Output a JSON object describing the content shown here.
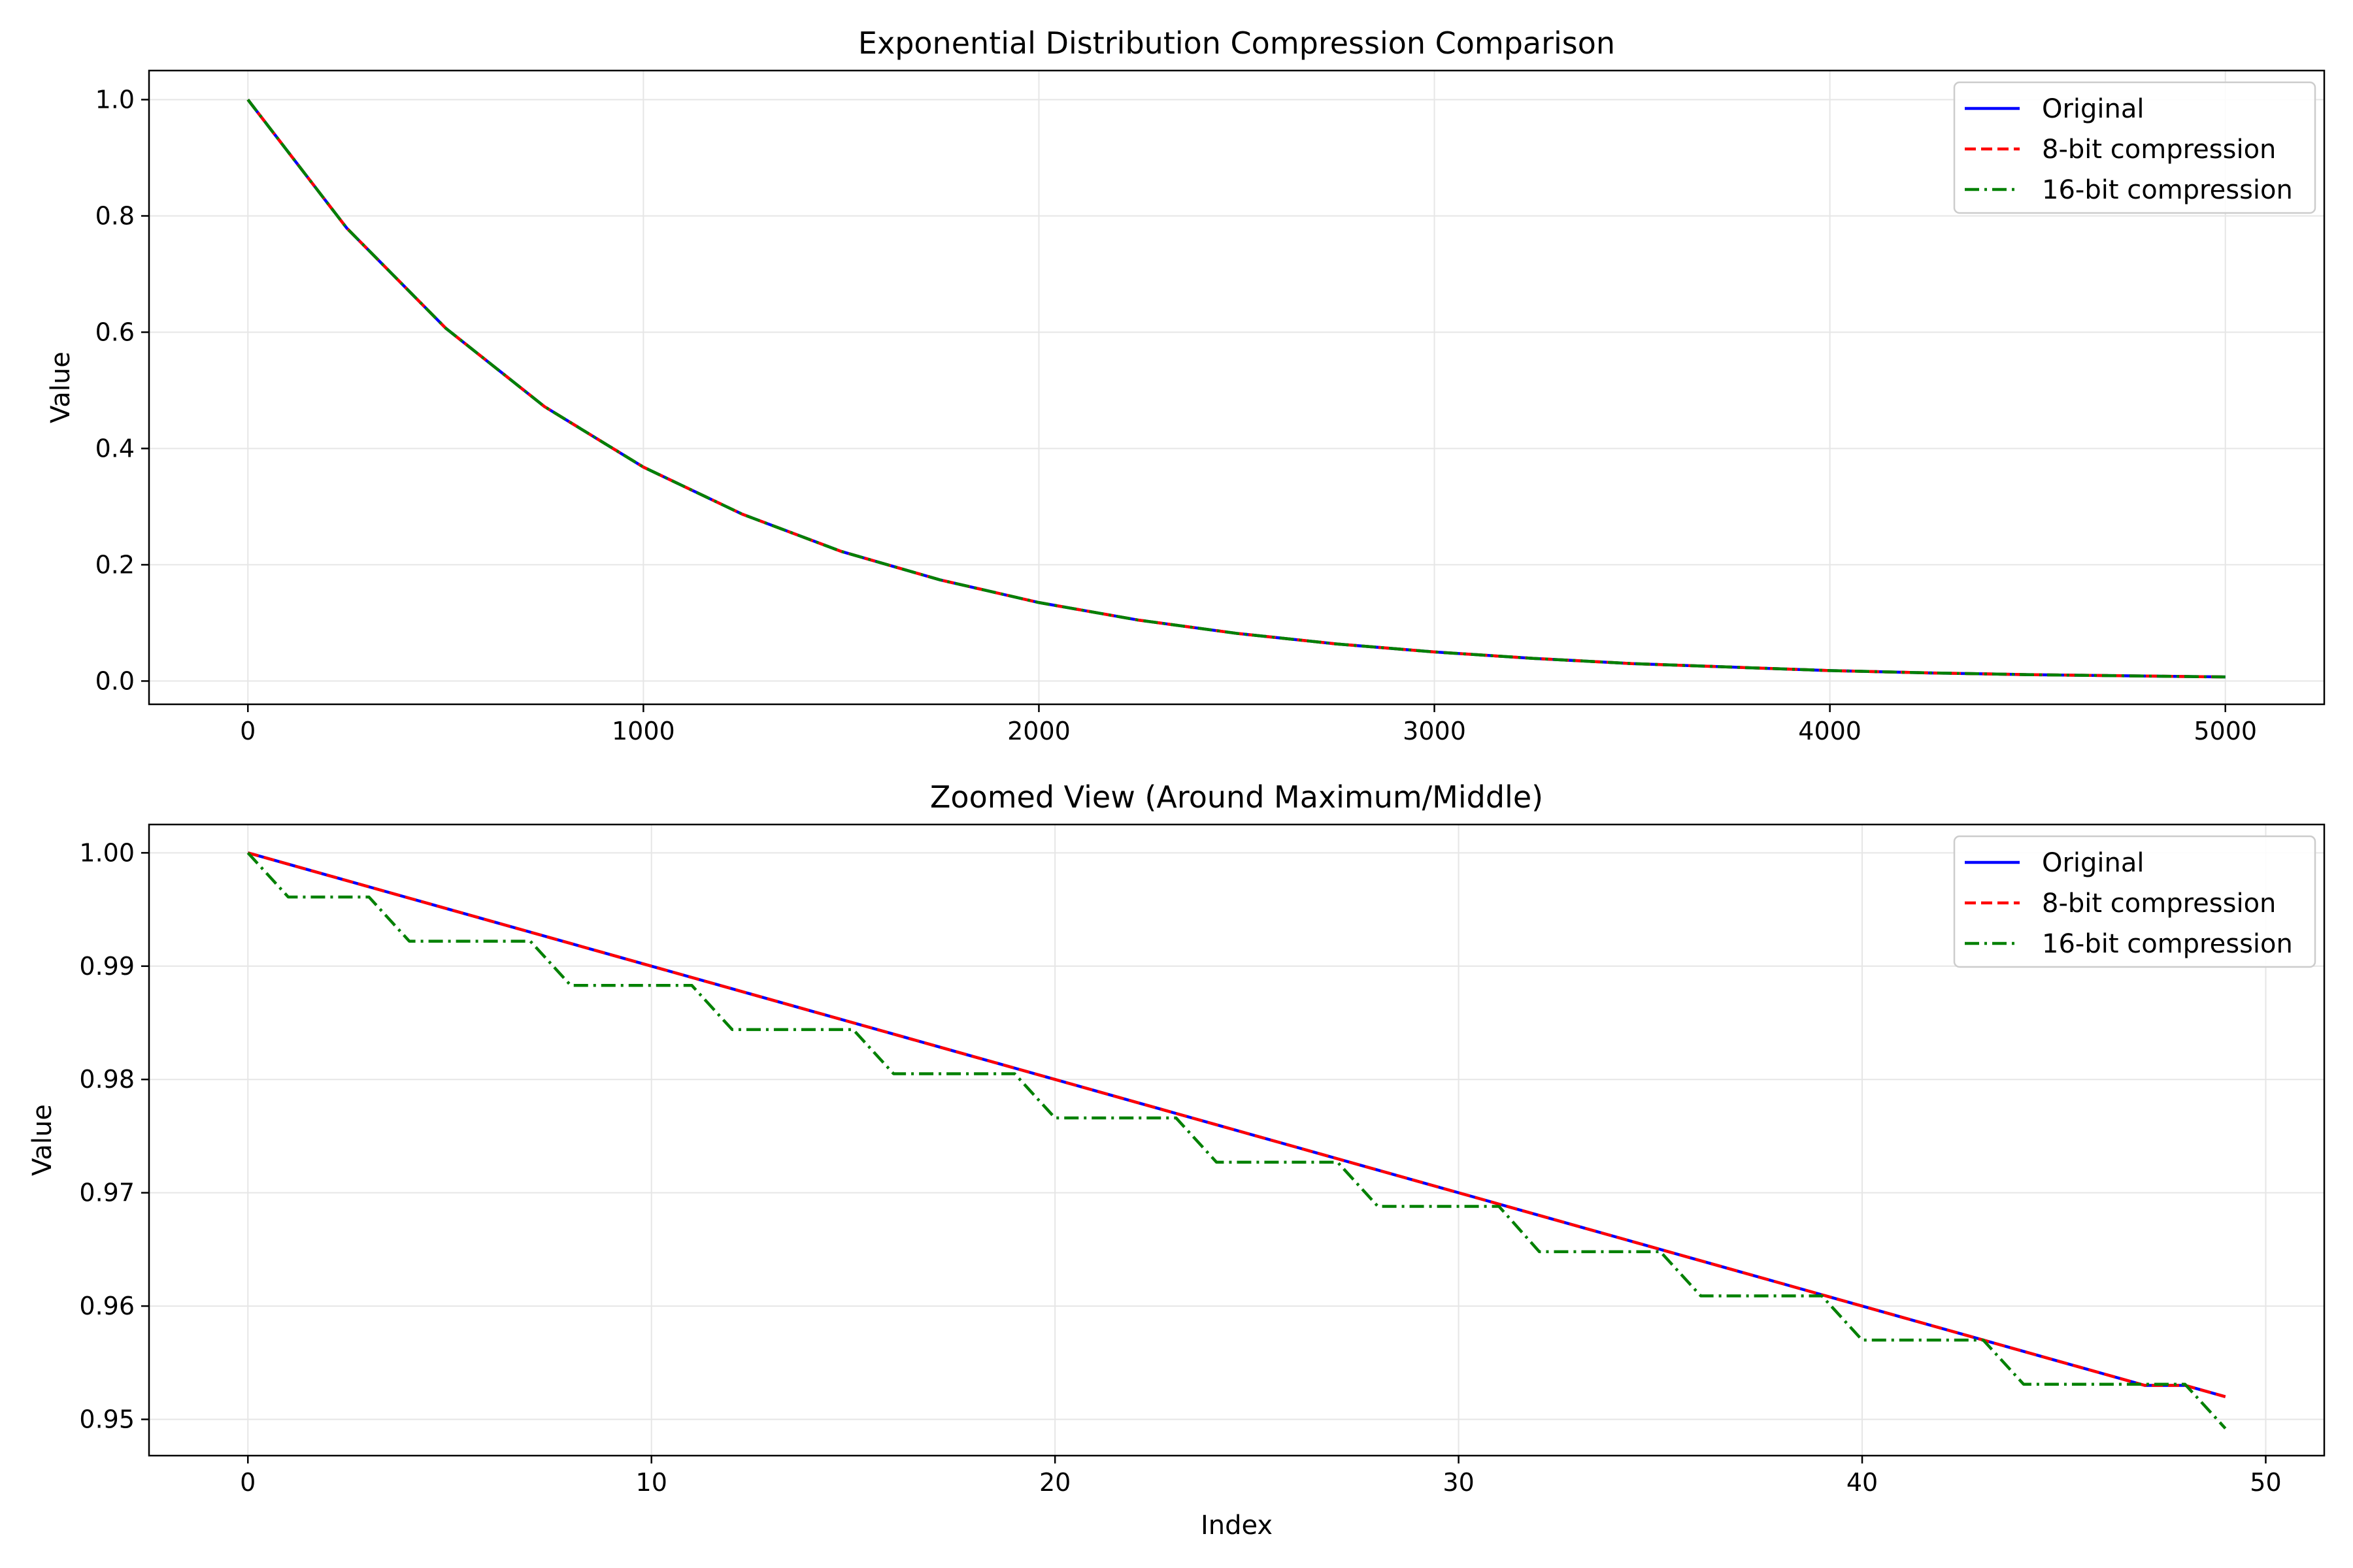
{
  "figure": {
    "background": "#ffffff",
    "grid_color": "#e6e6e6",
    "colors": {
      "original": "#0000ff",
      "bit8": "#ff0000",
      "bit16": "#008000"
    }
  },
  "chart_data": [
    {
      "type": "line",
      "title": "Exponential Distribution Compression Comparison",
      "xlabel": "",
      "ylabel": "Value",
      "xlim": [
        -250,
        5250
      ],
      "ylim": [
        -0.04,
        1.05
      ],
      "xticks": [
        0,
        1000,
        2000,
        3000,
        4000,
        5000
      ],
      "xtick_labels": [
        "0",
        "1000",
        "2000",
        "3000",
        "4000",
        "5000"
      ],
      "yticks": [
        0.0,
        0.2,
        0.4,
        0.6,
        0.8,
        1.0
      ],
      "ytick_labels": [
        "0.0",
        "0.2",
        "0.4",
        "0.6",
        "0.8",
        "1.0"
      ],
      "grid": true,
      "legend_position": "top-right",
      "x": [
        0,
        250,
        500,
        750,
        1000,
        1250,
        1500,
        1750,
        2000,
        2250,
        2500,
        2750,
        3000,
        3250,
        3500,
        3750,
        4000,
        4250,
        4500,
        4750,
        5000
      ],
      "series": [
        {
          "name": "Original",
          "style": "solid",
          "color_key": "original",
          "values": [
            1.0,
            0.779,
            0.607,
            0.472,
            0.368,
            0.287,
            0.223,
            0.174,
            0.135,
            0.105,
            0.082,
            0.064,
            0.05,
            0.039,
            0.03,
            0.024,
            0.018,
            0.014,
            0.011,
            0.009,
            0.007
          ]
        },
        {
          "name": "8-bit compression",
          "style": "dashed",
          "color_key": "bit8",
          "values": [
            1.0,
            0.779,
            0.607,
            0.472,
            0.368,
            0.287,
            0.223,
            0.174,
            0.135,
            0.105,
            0.082,
            0.064,
            0.05,
            0.039,
            0.03,
            0.024,
            0.018,
            0.014,
            0.011,
            0.009,
            0.007
          ]
        },
        {
          "name": "16-bit compression",
          "style": "dashdot",
          "color_key": "bit16",
          "values": [
            1.0,
            0.779,
            0.607,
            0.472,
            0.368,
            0.287,
            0.223,
            0.174,
            0.135,
            0.105,
            0.082,
            0.064,
            0.05,
            0.039,
            0.03,
            0.024,
            0.018,
            0.014,
            0.011,
            0.009,
            0.007
          ]
        }
      ]
    },
    {
      "type": "line",
      "title": "Zoomed View (Around Maximum/Middle)",
      "xlabel": "Index",
      "ylabel": "Value",
      "xlim": [
        -2.45,
        51.45
      ],
      "ylim": [
        0.9468,
        1.0025
      ],
      "xticks": [
        0,
        10,
        20,
        30,
        40,
        50
      ],
      "xtick_labels": [
        "0",
        "10",
        "20",
        "30",
        "40",
        "50"
      ],
      "yticks": [
        0.95,
        0.96,
        0.97,
        0.98,
        0.99,
        1.0
      ],
      "ytick_labels": [
        "0.95",
        "0.96",
        "0.97",
        "0.98",
        "0.99",
        "1.00"
      ],
      "grid": true,
      "legend_position": "top-right",
      "x": [
        0,
        1,
        2,
        3,
        4,
        5,
        6,
        7,
        8,
        9,
        10,
        11,
        12,
        13,
        14,
        15,
        16,
        17,
        18,
        19,
        20,
        21,
        22,
        23,
        24,
        25,
        26,
        27,
        28,
        29,
        30,
        31,
        32,
        33,
        34,
        35,
        36,
        37,
        38,
        39,
        40,
        41,
        42,
        43,
        44,
        45,
        46,
        47,
        48,
        49
      ],
      "series": [
        {
          "name": "Original",
          "style": "solid",
          "color_key": "original",
          "values": [
            1.0,
            0.999,
            0.998,
            0.997,
            0.996,
            0.995,
            0.994,
            0.993,
            0.992,
            0.991,
            0.99,
            0.989,
            0.988,
            0.987,
            0.986,
            0.985,
            0.984,
            0.983,
            0.982,
            0.981,
            0.98,
            0.979,
            0.978,
            0.977,
            0.976,
            0.975,
            0.974,
            0.973,
            0.972,
            0.971,
            0.97,
            0.969,
            0.968,
            0.967,
            0.966,
            0.965,
            0.964,
            0.963,
            0.962,
            0.961,
            0.96,
            0.959,
            0.958,
            0.957,
            0.956,
            0.955,
            0.954,
            0.953,
            0.953,
            0.952
          ]
        },
        {
          "name": "8-bit compression",
          "style": "dashed",
          "color_key": "bit8",
          "values": [
            1.0,
            0.999,
            0.998,
            0.997,
            0.996,
            0.995,
            0.994,
            0.993,
            0.992,
            0.991,
            0.99,
            0.989,
            0.988,
            0.987,
            0.986,
            0.985,
            0.984,
            0.983,
            0.982,
            0.981,
            0.98,
            0.979,
            0.978,
            0.977,
            0.976,
            0.975,
            0.974,
            0.973,
            0.972,
            0.971,
            0.97,
            0.969,
            0.968,
            0.967,
            0.966,
            0.965,
            0.964,
            0.963,
            0.962,
            0.961,
            0.96,
            0.959,
            0.958,
            0.957,
            0.956,
            0.955,
            0.954,
            0.953,
            0.953,
            0.952
          ]
        },
        {
          "name": "16-bit compression",
          "style": "dashdot",
          "color_key": "bit16",
          "values": [
            1.0,
            0.9961,
            0.9961,
            0.9961,
            0.9922,
            0.9922,
            0.9922,
            0.9922,
            0.9883,
            0.9883,
            0.9883,
            0.9883,
            0.9844,
            0.9844,
            0.9844,
            0.9844,
            0.9805,
            0.9805,
            0.9805,
            0.9805,
            0.9766,
            0.9766,
            0.9766,
            0.9766,
            0.9727,
            0.9727,
            0.9727,
            0.9727,
            0.9688,
            0.9688,
            0.9688,
            0.9688,
            0.9648,
            0.9648,
            0.9648,
            0.9648,
            0.9609,
            0.9609,
            0.9609,
            0.9609,
            0.957,
            0.957,
            0.957,
            0.957,
            0.9531,
            0.9531,
            0.9531,
            0.9531,
            0.9531,
            0.9492
          ]
        }
      ]
    }
  ]
}
